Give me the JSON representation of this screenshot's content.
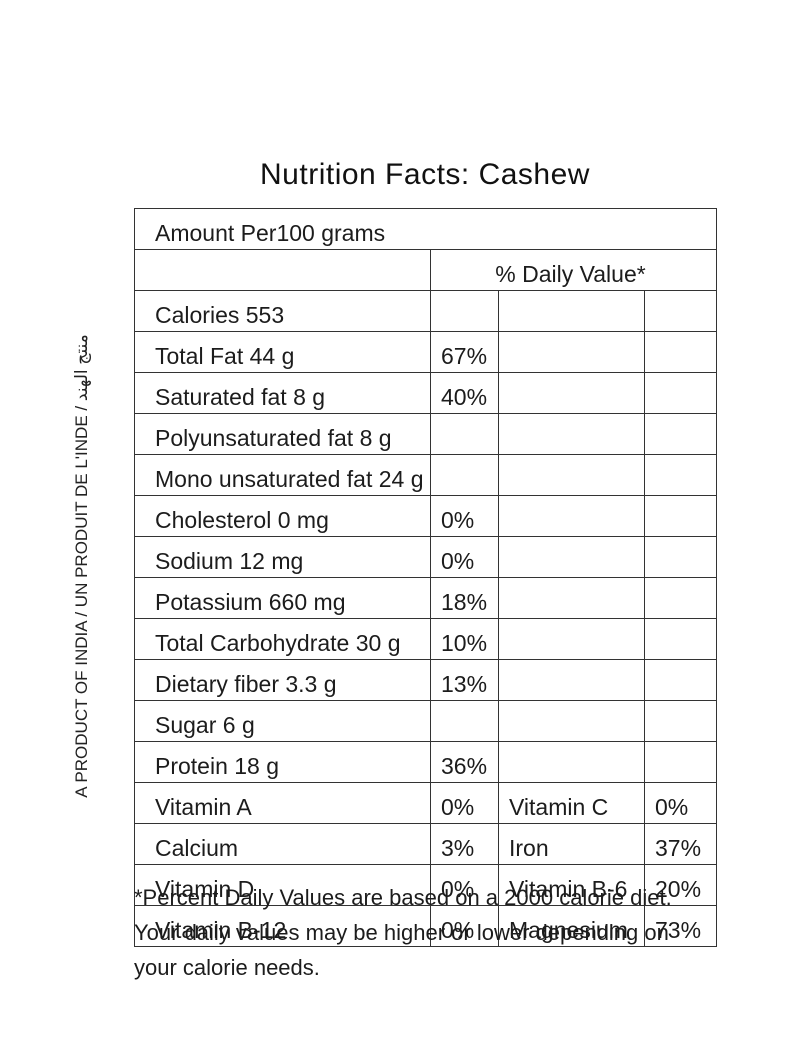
{
  "title": "Nutrition Facts: Cashew",
  "side_text": "A PRODUCT OF INDIA / UN PRODUIT DE L'INDE / منتج الهند",
  "table": {
    "header": "Amount Per100 grams",
    "daily_value_header": "% Daily Value*",
    "rows": [
      {
        "label": "Calories 553",
        "dv": ""
      },
      {
        "label": "Total Fat 44 g",
        "dv": "67%"
      },
      {
        "label": "Saturated fat 8 g",
        "dv": "40%"
      },
      {
        "label": "Polyunsaturated fat 8 g",
        "dv": ""
      },
      {
        "label": "Mono unsaturated fat 24 g",
        "dv": ""
      },
      {
        "label": "Cholesterol 0 mg",
        "dv": "0%"
      },
      {
        "label": "Sodium 12 mg",
        "dv": "0%"
      },
      {
        "label": "Potassium 660 mg",
        "dv": "18%"
      },
      {
        "label": "Total Carbohydrate 30 g",
        "dv": "10%"
      },
      {
        "label": "Dietary fiber 3.3 g",
        "dv": "13%"
      },
      {
        "label": "Sugar 6 g",
        "dv": ""
      },
      {
        "label": "Protein 18 g",
        "dv": "36%"
      }
    ],
    "vitamin_rows": [
      {
        "label": "Vitamin A",
        "dv": "0%",
        "label2": "Vitamin C",
        "dv2": "0%"
      },
      {
        "label": "Calcium",
        "dv": "3%",
        "label2": "Iron",
        "dv2": "37%"
      },
      {
        "label": "Vitamin D",
        "dv": "0%",
        "label2": "Vitamin B-6",
        "dv2": "20%"
      },
      {
        "label": "Vitamin B-12",
        "dv": "0%",
        "label2": "Magnesium",
        "dv2": "73%"
      }
    ]
  },
  "footnote": [
    "*Percent Daily Values are based on a 2000 calorie diet.",
    "Your daily values may be higher or lower depending on",
    "your calorie needs."
  ]
}
